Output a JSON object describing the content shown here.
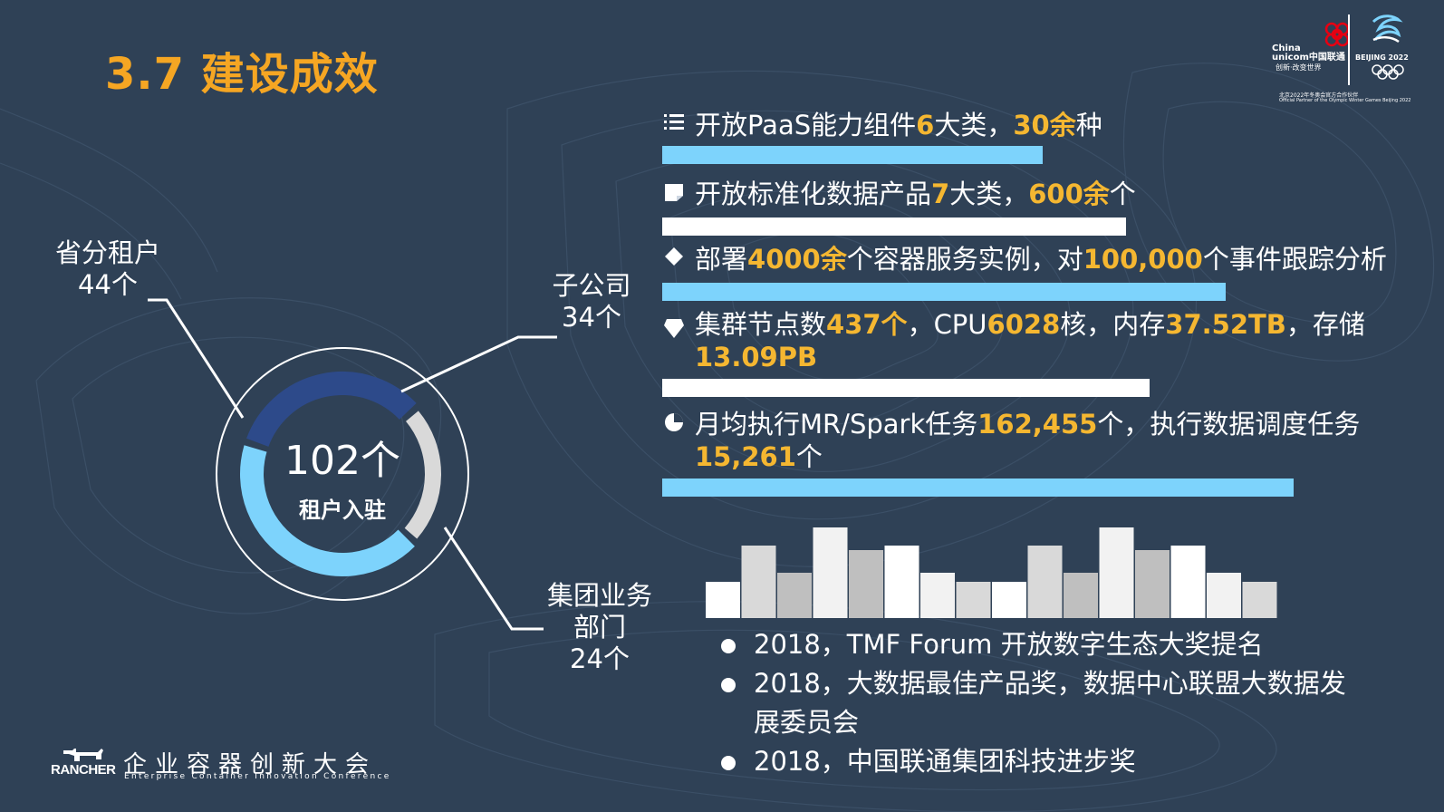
{
  "slide": {
    "title": "3.7 建设成效"
  },
  "logos": {
    "unicom_en_1": "China",
    "unicom_en_2": "unicom中国联通",
    "unicom_slogan": "创新·改变世界",
    "beijing_2022": "BEIJING 2022",
    "partner_cn": "北京2022年冬奥会官方合作伙伴",
    "partner_en": "Official Partner of the Olympic Winter Games Beijing 2022"
  },
  "donut": {
    "total_number": "102个",
    "total_caption": "租户入驻",
    "segments": [
      {
        "name": "省分租户",
        "count": "44个",
        "value": 44,
        "color": "#7dd3fc"
      },
      {
        "name": "子公司",
        "count": "34个",
        "value": 34,
        "color": "#2d4a8a"
      },
      {
        "name": "集团业务",
        "name2": "部门",
        "count": "24个",
        "value": 24,
        "color": "#d9d9d9"
      }
    ]
  },
  "stats": [
    {
      "icon": "list-icon",
      "parts": [
        {
          "t": "开放PaaS能力组件",
          "h": false
        },
        {
          "t": "6",
          "h": true
        },
        {
          "t": "大类，",
          "h": false
        },
        {
          "t": "30余",
          "h": true
        },
        {
          "t": "种",
          "h": false
        }
      ],
      "bar_fraction": 0.5,
      "bar_color": "#7dd3fc"
    },
    {
      "icon": "note-icon",
      "parts": [
        {
          "t": "开放标准化数据产品",
          "h": false
        },
        {
          "t": "7",
          "h": true
        },
        {
          "t": "大类，",
          "h": false
        },
        {
          "t": "600余",
          "h": true
        },
        {
          "t": "个",
          "h": false
        }
      ],
      "bar_fraction": 0.61,
      "bar_color": "#ffffff"
    },
    {
      "icon": "diamond-icon",
      "parts": [
        {
          "t": "部署",
          "h": false
        },
        {
          "t": "4000余",
          "h": true
        },
        {
          "t": "个容器服务实例，对",
          "h": false
        },
        {
          "t": "100,000",
          "h": true
        },
        {
          "t": "个事件跟踪分析",
          "h": false
        }
      ],
      "bar_fraction": 0.74,
      "bar_color": "#7dd3fc"
    },
    {
      "icon": "gem-icon",
      "parts": [
        {
          "t": "集群节点数",
          "h": false
        },
        {
          "t": "437个",
          "h": true
        },
        {
          "t": "，CPU",
          "h": false
        },
        {
          "t": "6028",
          "h": true
        },
        {
          "t": "核，内存",
          "h": false
        },
        {
          "t": "37.52TB",
          "h": true
        },
        {
          "t": "，存储",
          "h": false
        },
        {
          "t": "13.09PB",
          "h": true
        }
      ],
      "bar_fraction": 0.64,
      "bar_color": "#ffffff"
    },
    {
      "icon": "pie-icon",
      "parts": [
        {
          "t": "月均执行MR/Spark任务",
          "h": false
        },
        {
          "t": "162,455",
          "h": true
        },
        {
          "t": "个，执行数据调度任务",
          "h": false
        },
        {
          "t": "15,261",
          "h": true
        },
        {
          "t": "个",
          "h": false
        }
      ],
      "bar_fraction": 0.83,
      "bar_color": "#7dd3fc"
    }
  ],
  "decor_bars": [
    {
      "value": 0.4,
      "color": "#ffffff"
    },
    {
      "value": 0.8,
      "color": "#d9d9d9"
    },
    {
      "value": 0.5,
      "color": "#bfbfbf"
    },
    {
      "value": 1.0,
      "color": "#f2f2f2"
    },
    {
      "value": 0.75,
      "color": "#bfbfbf"
    },
    {
      "value": 0.8,
      "color": "#ffffff"
    },
    {
      "value": 0.5,
      "color": "#f2f2f2"
    },
    {
      "value": 0.4,
      "color": "#d9d9d9"
    },
    {
      "value": 0.4,
      "color": "#ffffff"
    },
    {
      "value": 0.8,
      "color": "#d9d9d9"
    },
    {
      "value": 0.5,
      "color": "#bfbfbf"
    },
    {
      "value": 1.0,
      "color": "#f2f2f2"
    },
    {
      "value": 0.75,
      "color": "#bfbfbf"
    },
    {
      "value": 0.8,
      "color": "#ffffff"
    },
    {
      "value": 0.5,
      "color": "#f2f2f2"
    },
    {
      "value": 0.4,
      "color": "#d9d9d9"
    }
  ],
  "awards": [
    "2018，TMF Forum 开放数字生态大奖提名",
    "2018，大数据最佳产品奖，数据中心联盟大数据发展委员会",
    "2018，中国联通集团科技进步奖"
  ],
  "footer": {
    "rancher": "RANCHER",
    "conference_cn": "企业容器创新大会",
    "conference_en": "Enterprise Container Innovation Conference"
  },
  "colors": {
    "background": "#2f4156",
    "accent": "#f5a623",
    "highlight": "#f5b731",
    "light_blue": "#7dd3fc",
    "dark_blue": "#2d4a8a",
    "grey": "#d9d9d9"
  }
}
